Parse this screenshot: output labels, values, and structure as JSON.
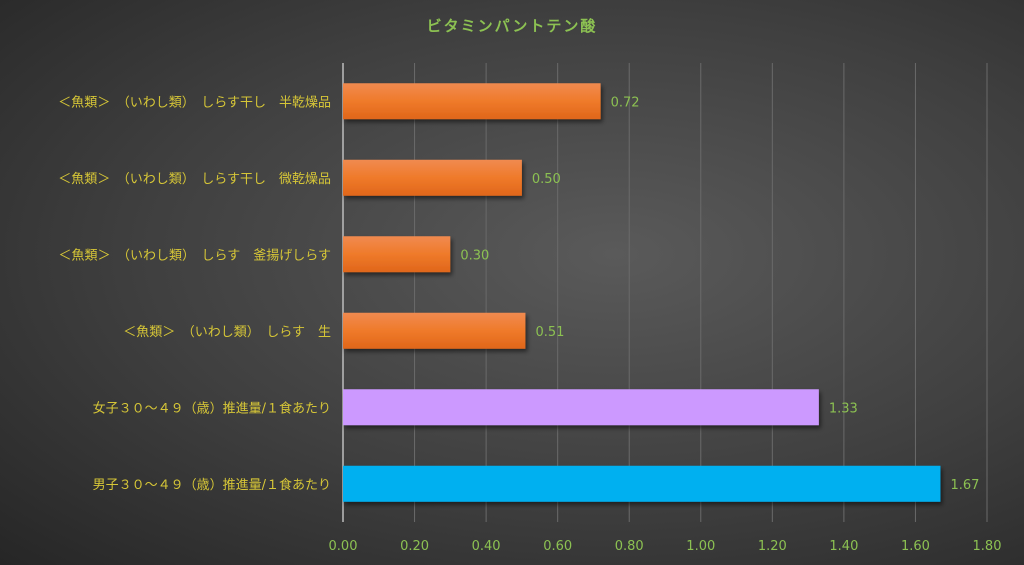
{
  "chart_data": {
    "type": "bar",
    "orientation": "horizontal",
    "title": "ビタミンパントテン酸",
    "xlabel": "",
    "ylabel": "",
    "xlim": [
      0,
      1.8
    ],
    "grid": true,
    "categories": [
      "＜魚類＞　（いわし類）　しらす干し　半乾燥品",
      "＜魚類＞　（いわし類）　しらす干し　微乾燥品",
      "＜魚類＞　（いわし類）　しらす　釜揚げしらす",
      "＜魚類＞　（いわし類）　しらす　生",
      "女子３０～４９（歳）推進量/１食あたり",
      "男子３０～４９（歳）推進量/１食あたり"
    ],
    "values": [
      0.72,
      0.5,
      0.3,
      0.51,
      1.33,
      1.67
    ],
    "value_labels": [
      "0.72",
      "0.50",
      "0.30",
      "0.51",
      "1.33",
      "1.67"
    ],
    "colors": [
      "#ed7d31",
      "#ed7d31",
      "#ed7d31",
      "#ed7d31",
      "#cc99ff",
      "#00b0f0"
    ],
    "x_ticks": [
      "0.00",
      "0.20",
      "0.40",
      "0.60",
      "0.80",
      "1.00",
      "1.20",
      "1.40",
      "1.60",
      "1.80"
    ],
    "label_color": "#d6c637",
    "value_color": "#8cc152"
  }
}
